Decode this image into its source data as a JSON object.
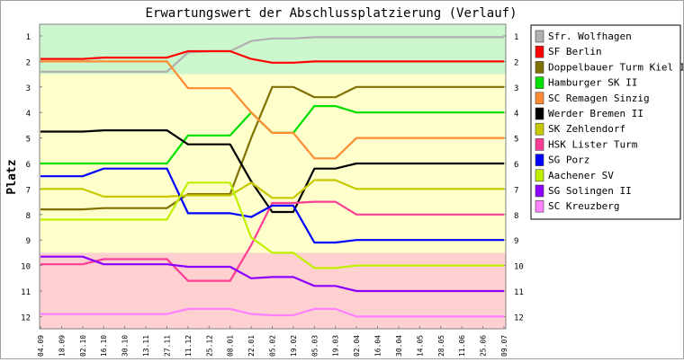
{
  "chart_data": {
    "type": "line",
    "title": "Erwartungswert der Abschlussplatzierung (Verlauf)",
    "ylabel": "Platz",
    "xlabel": "",
    "ylim": [
      1,
      12
    ],
    "y_inverted": true,
    "y_ticks": [
      "1",
      "2",
      "3",
      "4",
      "5",
      "6",
      "7",
      "8",
      "9",
      "10",
      "11",
      "12"
    ],
    "grid": false,
    "legend_position": "right",
    "categories": [
      "04.09",
      "18.09",
      "02.10",
      "16.10",
      "30.10",
      "13.11",
      "27.11",
      "11.12",
      "25.12",
      "08.01",
      "22.01",
      "05.02",
      "19.02",
      "05.03",
      "19.03",
      "02.04",
      "16.04",
      "30.04",
      "14.05",
      "28.05",
      "11.06",
      "25.06",
      "09.07"
    ],
    "zones": [
      {
        "name": "promotion",
        "color": "#ccf7cc",
        "from": 0.5,
        "to": 2.5
      },
      {
        "name": "middle",
        "color": "#ffffcc",
        "from": 2.5,
        "to": 9.5
      },
      {
        "name": "relegation",
        "color": "#ffd0d0",
        "from": 9.5,
        "to": 12.5
      }
    ],
    "series": [
      {
        "name": "Sfr. Wolfhagen",
        "color": "#b0b0b0",
        "values": [
          2.4,
          2.4,
          2.4,
          2.4,
          2.4,
          2.4,
          2.4,
          1.65,
          1.6,
          1.6,
          1.2,
          1.1,
          1.1,
          1.05,
          1.05,
          1.05,
          1.05,
          1.05,
          1.05,
          1.05,
          1.05,
          1.05,
          1.05
        ]
      },
      {
        "name": "SF Berlin",
        "color": "#ff0000",
        "values": [
          1.9,
          1.9,
          1.9,
          1.85,
          1.85,
          1.85,
          1.85,
          1.6,
          1.6,
          1.6,
          1.9,
          2.05,
          2.05,
          2.0,
          2.0,
          2.0,
          2.0,
          2.0,
          2.0,
          2.0,
          2.0,
          2.0,
          2.0
        ]
      },
      {
        "name": "Doppelbauer Turm Kiel II",
        "color": "#807000",
        "values": [
          7.8,
          7.8,
          7.8,
          7.75,
          7.75,
          7.75,
          7.75,
          7.2,
          7.2,
          7.2,
          5.0,
          3.0,
          3.0,
          3.4,
          3.4,
          3.0,
          3.0,
          3.0,
          3.0,
          3.0,
          3.0,
          3.0,
          3.0
        ]
      },
      {
        "name": "Hamburger SK II",
        "color": "#00e000",
        "values": [
          6.0,
          6.0,
          6.0,
          6.0,
          6.0,
          6.0,
          6.0,
          4.9,
          4.9,
          4.9,
          4.0,
          4.8,
          4.8,
          3.75,
          3.75,
          4.0,
          4.0,
          4.0,
          4.0,
          4.0,
          4.0,
          4.0,
          4.0
        ]
      },
      {
        "name": "SC Remagen Sinzig",
        "color": "#ff8c33",
        "values": [
          2.0,
          2.0,
          2.0,
          2.0,
          2.0,
          2.0,
          2.0,
          3.05,
          3.05,
          3.05,
          4.0,
          4.8,
          4.8,
          5.8,
          5.8,
          5.0,
          5.0,
          5.0,
          5.0,
          5.0,
          5.0,
          5.0,
          5.0
        ]
      },
      {
        "name": "Werder Bremen II",
        "color": "#000000",
        "values": [
          4.75,
          4.75,
          4.75,
          4.7,
          4.7,
          4.7,
          4.7,
          5.25,
          5.25,
          5.25,
          6.7,
          7.9,
          7.9,
          6.2,
          6.2,
          6.0,
          6.0,
          6.0,
          6.0,
          6.0,
          6.0,
          6.0,
          6.0
        ]
      },
      {
        "name": "SK Zehlendorf",
        "color": "#c8c800",
        "values": [
          7.0,
          7.0,
          7.0,
          7.3,
          7.3,
          7.3,
          7.3,
          7.25,
          7.25,
          7.25,
          6.75,
          7.35,
          7.35,
          6.65,
          6.65,
          7.0,
          7.0,
          7.0,
          7.0,
          7.0,
          7.0,
          7.0,
          7.0
        ]
      },
      {
        "name": "HSK Lister Turm",
        "color": "#ff3c96",
        "values": [
          9.95,
          9.95,
          9.95,
          9.75,
          9.75,
          9.75,
          9.75,
          10.6,
          10.6,
          10.6,
          9.2,
          7.55,
          7.55,
          7.5,
          7.5,
          8.0,
          8.0,
          8.0,
          8.0,
          8.0,
          8.0,
          8.0,
          8.0
        ]
      },
      {
        "name": "SG Porz",
        "color": "#0000ff",
        "values": [
          6.5,
          6.5,
          6.5,
          6.2,
          6.2,
          6.2,
          6.2,
          7.95,
          7.95,
          7.95,
          8.1,
          7.65,
          7.65,
          9.1,
          9.1,
          9.0,
          9.0,
          9.0,
          9.0,
          9.0,
          9.0,
          9.0,
          9.0
        ]
      },
      {
        "name": "Aachener SV",
        "color": "#c0f000",
        "values": [
          8.2,
          8.2,
          8.2,
          8.2,
          8.2,
          8.2,
          8.2,
          6.75,
          6.75,
          6.75,
          8.9,
          9.5,
          9.5,
          10.1,
          10.1,
          10.0,
          10.0,
          10.0,
          10.0,
          10.0,
          10.0,
          10.0,
          10.0
        ]
      },
      {
        "name": "SG Solingen II",
        "color": "#8c00ff",
        "values": [
          9.65,
          9.65,
          9.65,
          9.95,
          9.95,
          9.95,
          9.95,
          10.05,
          10.05,
          10.05,
          10.5,
          10.45,
          10.45,
          10.8,
          10.8,
          11.0,
          11.0,
          11.0,
          11.0,
          11.0,
          11.0,
          11.0,
          11.0
        ]
      },
      {
        "name": "SC Kreuzberg",
        "color": "#ff80ff",
        "values": [
          11.9,
          11.9,
          11.9,
          11.9,
          11.9,
          11.9,
          11.9,
          11.7,
          11.7,
          11.7,
          11.9,
          11.95,
          11.95,
          11.7,
          11.7,
          12.0,
          12.0,
          12.0,
          12.0,
          12.0,
          12.0,
          12.0,
          12.0
        ]
      }
    ]
  }
}
